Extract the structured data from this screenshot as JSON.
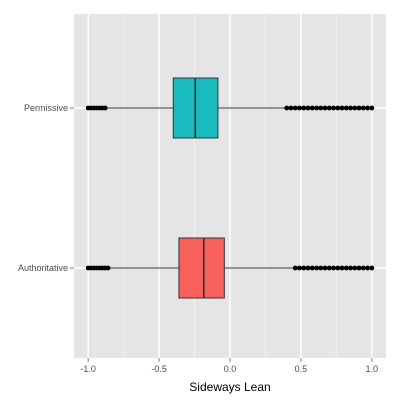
{
  "chart_data": {
    "type": "boxplot",
    "orientation": "horizontal",
    "title": "",
    "xlabel": "Sideways Lean",
    "ylabel": "",
    "xlim": [
      -1.1,
      1.1
    ],
    "x_ticks": [
      -1.0,
      -0.5,
      0.0,
      0.5,
      1.0
    ],
    "x_tick_labels": [
      "-1.0",
      "-0.5",
      "0.0",
      "0.5",
      "1.0"
    ],
    "grid": true,
    "legend": "none",
    "categories": [
      "Permissive",
      "Authoritative"
    ],
    "series": [
      {
        "category": "Permissive",
        "color": "#1ABBBF",
        "min": -1.0,
        "q1": -0.4,
        "median": -0.245,
        "q3": -0.085,
        "max": 1.0,
        "whisker_low": -0.87,
        "whisker_high": 0.4,
        "outliers_low": [
          -1.0,
          -0.98,
          -0.96,
          -0.94,
          -0.92,
          -0.9,
          -0.88
        ],
        "outliers_high": [
          0.4,
          0.43,
          0.46,
          0.49,
          0.52,
          0.55,
          0.58,
          0.61,
          0.64,
          0.67,
          0.7,
          0.73,
          0.76,
          0.79,
          0.82,
          0.85,
          0.88,
          0.91,
          0.94,
          0.97,
          1.0
        ]
      },
      {
        "category": "Authoritative",
        "color": "#F8615C",
        "min": -1.0,
        "q1": -0.36,
        "median": -0.185,
        "q3": -0.04,
        "max": 1.0,
        "whisker_low": -0.85,
        "whisker_high": 0.46,
        "outliers_low": [
          -1.0,
          -0.98,
          -0.96,
          -0.94,
          -0.92,
          -0.9,
          -0.88,
          -0.86
        ],
        "outliers_high": [
          0.46,
          0.49,
          0.52,
          0.55,
          0.58,
          0.61,
          0.64,
          0.67,
          0.7,
          0.73,
          0.76,
          0.79,
          0.82,
          0.85,
          0.88,
          0.91,
          0.94,
          0.97,
          1.0
        ]
      }
    ]
  }
}
